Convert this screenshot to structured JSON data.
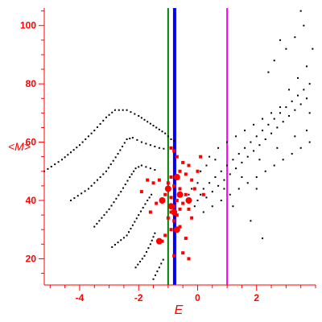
{
  "chart_data": {
    "type": "scatter",
    "title": "",
    "xlabel": "E",
    "ylabel": "<M>",
    "xlim": [
      -5.2,
      4.0
    ],
    "ylim": [
      11,
      106
    ],
    "x_ticks": [
      -4,
      -2,
      0,
      2
    ],
    "y_ticks": [
      20,
      40,
      60,
      80,
      100
    ],
    "grid": false,
    "colors": {
      "axis": "#ff0000",
      "points": "#000000",
      "highlight": "#ff0000",
      "line_green": "#008000",
      "line_blue": "#0000ff",
      "line_magenta": "#ff00ff"
    },
    "vertical_lines": [
      {
        "x": -1.0,
        "color": "#008000",
        "width": 2
      },
      {
        "x": -0.78,
        "color": "#0000ff",
        "width": 4
      },
      {
        "x": 1.0,
        "color": "#ff00ff",
        "width": 2
      }
    ],
    "curves": [
      {
        "name": "",
        "points": [
          [
            -5.2,
            50
          ],
          [
            -4.6,
            54
          ],
          [
            -4.0,
            59
          ],
          [
            -3.5,
            64
          ],
          [
            -3.1,
            68.5
          ],
          [
            -2.8,
            71
          ],
          [
            -2.4,
            71
          ],
          [
            -2.0,
            69
          ],
          [
            -1.7,
            67
          ],
          [
            -1.4,
            65
          ],
          [
            -1.1,
            63
          ],
          [
            -0.9,
            61
          ],
          [
            -0.7,
            60
          ]
        ]
      },
      {
        "name": "",
        "points": [
          [
            -4.3,
            40
          ],
          [
            -3.7,
            44
          ],
          [
            -3.1,
            50
          ],
          [
            -2.7,
            56
          ],
          [
            -2.4,
            61
          ],
          [
            -2.2,
            61.5
          ],
          [
            -1.9,
            60
          ],
          [
            -1.6,
            59
          ],
          [
            -1.3,
            58
          ],
          [
            -1.0,
            57.5
          ]
        ]
      },
      {
        "name": "",
        "points": [
          [
            -3.5,
            31
          ],
          [
            -3.0,
            37
          ],
          [
            -2.6,
            43
          ],
          [
            -2.3,
            48
          ],
          [
            -2.1,
            51
          ],
          [
            -1.9,
            52
          ],
          [
            -1.6,
            51
          ],
          [
            -1.3,
            50
          ]
        ]
      },
      {
        "name": "",
        "points": [
          [
            -2.9,
            24
          ],
          [
            -2.4,
            28
          ],
          [
            -2.0,
            35
          ],
          [
            -1.7,
            40
          ],
          [
            -1.5,
            43
          ]
        ]
      },
      {
        "name": "",
        "points": [
          [
            -2.1,
            17
          ],
          [
            -1.8,
            21
          ],
          [
            -1.6,
            25
          ],
          [
            -1.4,
            30
          ]
        ]
      },
      {
        "name": "",
        "points": [
          [
            -1.5,
            13
          ],
          [
            -1.3,
            17
          ],
          [
            -1.1,
            21
          ]
        ]
      }
    ],
    "cloud_points": [
      [
        -0.1,
        38
      ],
      [
        0.0,
        40
      ],
      [
        0.1,
        42
      ],
      [
        0.2,
        44
      ],
      [
        0.3,
        41
      ],
      [
        0.4,
        46
      ],
      [
        0.5,
        43
      ],
      [
        0.6,
        48
      ],
      [
        0.7,
        45
      ],
      [
        0.8,
        50
      ],
      [
        0.9,
        47
      ],
      [
        1.0,
        52
      ],
      [
        1.1,
        49
      ],
      [
        1.2,
        54
      ],
      [
        1.3,
        51
      ],
      [
        1.4,
        56
      ],
      [
        1.5,
        53
      ],
      [
        1.6,
        58
      ],
      [
        1.7,
        55
      ],
      [
        1.8,
        60
      ],
      [
        1.9,
        57
      ],
      [
        2.0,
        62
      ],
      [
        2.1,
        59
      ],
      [
        2.2,
        64
      ],
      [
        2.3,
        61
      ],
      [
        2.4,
        66
      ],
      [
        2.5,
        63
      ],
      [
        2.6,
        68
      ],
      [
        2.7,
        65
      ],
      [
        2.8,
        70
      ],
      [
        2.9,
        67
      ],
      [
        3.0,
        72
      ],
      [
        3.1,
        69
      ],
      [
        3.2,
        74
      ],
      [
        3.3,
        71
      ],
      [
        3.4,
        76
      ],
      [
        3.5,
        73
      ],
      [
        3.6,
        78
      ],
      [
        3.7,
        75
      ],
      [
        3.8,
        80
      ],
      [
        0.2,
        36
      ],
      [
        0.5,
        38
      ],
      [
        0.8,
        40
      ],
      [
        1.1,
        42
      ],
      [
        1.4,
        44
      ],
      [
        1.7,
        46
      ],
      [
        2.0,
        48
      ],
      [
        2.3,
        50
      ],
      [
        2.6,
        52
      ],
      [
        2.9,
        54
      ],
      [
        3.2,
        56
      ],
      [
        3.5,
        58
      ],
      [
        3.8,
        60
      ],
      [
        0.4,
        55
      ],
      [
        0.7,
        58
      ],
      [
        1.0,
        60
      ],
      [
        1.3,
        62
      ],
      [
        1.6,
        64
      ],
      [
        1.9,
        66
      ],
      [
        2.2,
        68
      ],
      [
        2.5,
        70
      ],
      [
        2.8,
        72
      ],
      [
        3.1,
        78
      ],
      [
        3.4,
        82
      ],
      [
        3.7,
        86
      ],
      [
        3.0,
        92
      ],
      [
        3.3,
        96
      ],
      [
        3.6,
        100
      ],
      [
        3.5,
        105
      ],
      [
        2.8,
        95
      ],
      [
        2.6,
        88
      ],
      [
        2.4,
        84
      ],
      [
        3.9,
        92
      ],
      [
        3.8,
        70
      ],
      [
        3.7,
        64
      ],
      [
        3.3,
        62
      ],
      [
        2.7,
        58
      ],
      [
        2.1,
        54
      ],
      [
        1.5,
        48
      ],
      [
        0.9,
        44
      ],
      [
        0.1,
        50
      ],
      [
        0.3,
        52
      ],
      [
        0.6,
        54
      ],
      [
        -0.2,
        44
      ],
      [
        -0.3,
        42
      ],
      [
        0.0,
        46
      ],
      [
        1.8,
        33
      ],
      [
        2.2,
        27
      ],
      [
        1.2,
        38
      ],
      [
        2.0,
        44
      ]
    ],
    "highlight_points": [
      [
        -0.9,
        58
      ],
      [
        -0.8,
        57
      ],
      [
        -0.7,
        55
      ],
      [
        -0.5,
        53
      ],
      [
        -0.3,
        52
      ],
      [
        -0.6,
        50
      ],
      [
        -0.4,
        49
      ],
      [
        -0.2,
        47
      ],
      [
        -0.9,
        48
      ],
      [
        -1.0,
        46
      ],
      [
        -0.8,
        45
      ],
      [
        -0.6,
        44
      ],
      [
        -0.4,
        42
      ],
      [
        -1.1,
        42
      ],
      [
        -0.9,
        41
      ],
      [
        -0.7,
        40
      ],
      [
        -0.5,
        39
      ],
      [
        -0.8,
        38
      ],
      [
        -0.6,
        37
      ],
      [
        -0.9,
        36
      ],
      [
        -0.7,
        35
      ],
      [
        -1.0,
        34
      ],
      [
        -0.8,
        33
      ],
      [
        -0.6,
        31
      ],
      [
        -0.9,
        30
      ],
      [
        -1.1,
        28
      ],
      [
        -1.2,
        26
      ],
      [
        -0.5,
        22
      ],
      [
        -0.8,
        21
      ],
      [
        -0.3,
        20
      ],
      [
        -1.3,
        47
      ],
      [
        -1.5,
        46
      ],
      [
        -1.7,
        47
      ],
      [
        -1.9,
        43
      ],
      [
        -1.4,
        39
      ],
      [
        -1.6,
        36
      ],
      [
        0.1,
        55
      ],
      [
        0.0,
        50
      ],
      [
        -0.1,
        44
      ],
      [
        0.2,
        42
      ],
      [
        -0.3,
        37
      ],
      [
        -0.2,
        34
      ],
      [
        -0.4,
        27
      ]
    ],
    "big_points": [
      [
        -1.2,
        40
      ],
      [
        -0.9,
        38
      ],
      [
        -0.8,
        36
      ],
      [
        -0.7,
        48
      ],
      [
        -1.0,
        44
      ],
      [
        -0.6,
        42
      ],
      [
        -1.3,
        26
      ],
      [
        -0.7,
        30
      ],
      [
        -0.3,
        40
      ]
    ]
  }
}
